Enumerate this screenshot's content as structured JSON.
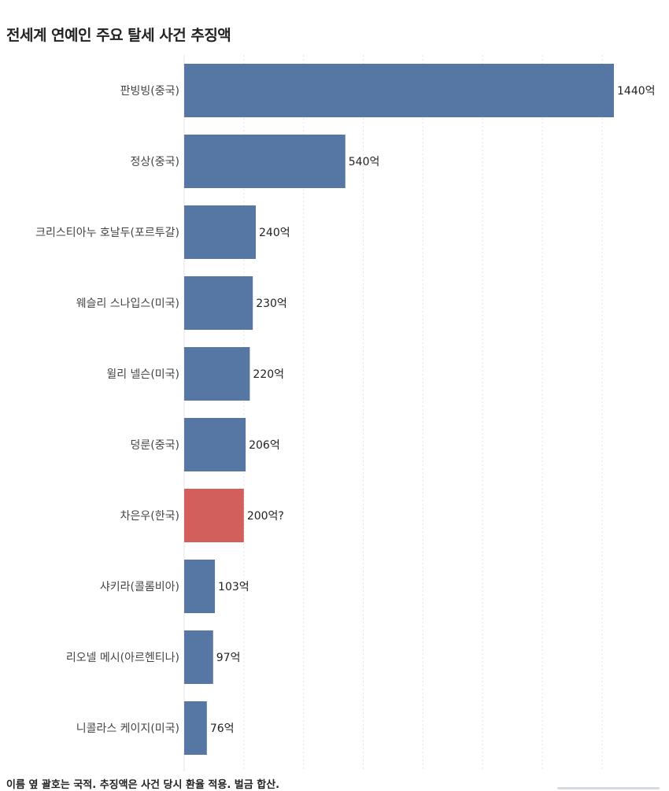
{
  "title": "전세계 연예인 주요 탈세 사건 추징액",
  "footnote": "이름 옆 괄호는 국적. 추징액은 사건 당시 환율 적용. 벌금 합산.",
  "colors": {
    "default_bar": "#5677a3",
    "highlight_bar": "#d25f5b",
    "gridline": "#e4e4e4"
  },
  "chart_data": {
    "type": "bar",
    "orientation": "horizontal",
    "title": "전세계 연예인 주요 탈세 사건 추징액",
    "xlabel": "",
    "ylabel": "",
    "unit": "억",
    "grid": true,
    "legend": "none",
    "xlim": [
      0,
      1440
    ],
    "categories": [
      "판빙빙(중국)",
      "정상(중국)",
      "크리스티아누 호날두(포르투갈)",
      "웨슬리 스나입스(미국)",
      "윌리 넬슨(미국)",
      "덩룬(중국)",
      "차은우(한국)",
      "샤키라(콜롬비아)",
      "리오넬 메시(아르헨티나)",
      "니콜라스 케이지(미국)"
    ],
    "values": [
      1440,
      540,
      240,
      230,
      220,
      206,
      200,
      103,
      97,
      76
    ],
    "value_labels": [
      "1440억",
      "540억",
      "240억",
      "230억",
      "220억",
      "206억",
      "200억?",
      "103억",
      "97억",
      "76억"
    ],
    "highlight": [
      "차은우(한국)"
    ]
  }
}
